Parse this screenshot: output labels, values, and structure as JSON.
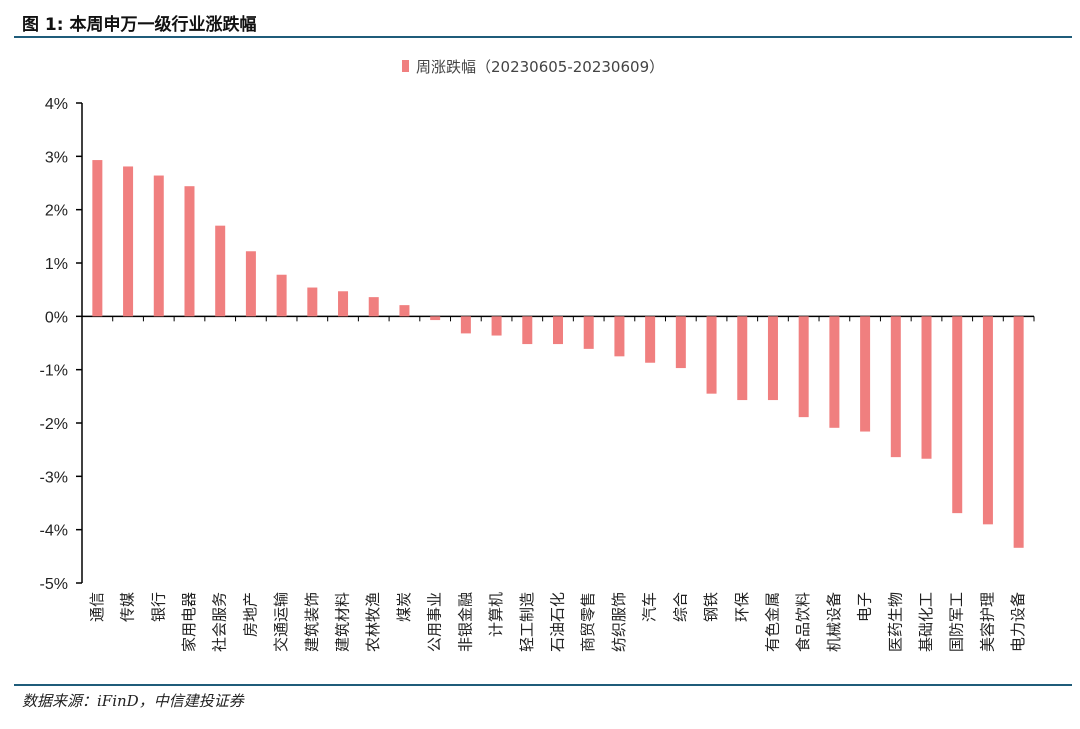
{
  "header": {
    "title": "图 1: 本周申万一级行业涨跌幅"
  },
  "footer": {
    "source": "数据来源：iFinD，中信建投证券"
  },
  "colors": {
    "bar": "#f07f7f",
    "rule": "#1f5c7a",
    "axis": "#000000"
  },
  "chart_data": {
    "type": "bar",
    "title": "",
    "xlabel": "",
    "ylabel": "",
    "ylim": [
      -5,
      4
    ],
    "y_ticks": [
      4,
      3,
      2,
      1,
      0,
      -1,
      -2,
      -3,
      -4,
      -5
    ],
    "y_tick_labels": [
      "4%",
      "3%",
      "2%",
      "1%",
      "0%",
      "-1%",
      "-2%",
      "-3%",
      "-4%",
      "-5%"
    ],
    "legend_position": "top-center",
    "grid": false,
    "categories": [
      "通信",
      "传媒",
      "银行",
      "家用电器",
      "社会服务",
      "房地产",
      "交通运输",
      "建筑装饰",
      "建筑材料",
      "农林牧渔",
      "煤炭",
      "公用事业",
      "非银金融",
      "计算机",
      "轻工制造",
      "石油石化",
      "商贸零售",
      "纺织服饰",
      "汽车",
      "综合",
      "钢铁",
      "环保",
      "有色金属",
      "食品饮料",
      "机械设备",
      "电子",
      "医药生物",
      "基础化工",
      "国防军工",
      "美容护理",
      "电力设备"
    ],
    "series": [
      {
        "name": "周涨跌幅（20230605-20230609）",
        "values": [
          2.93,
          2.81,
          2.64,
          2.44,
          1.7,
          1.22,
          0.78,
          0.54,
          0.47,
          0.36,
          0.21,
          -0.07,
          -0.32,
          -0.36,
          -0.52,
          -0.52,
          -0.61,
          -0.75,
          -0.87,
          -0.97,
          -1.45,
          -1.57,
          -1.57,
          -1.89,
          -2.09,
          -2.16,
          -2.64,
          -2.67,
          -3.69,
          -3.9,
          -4.34
        ]
      }
    ]
  }
}
